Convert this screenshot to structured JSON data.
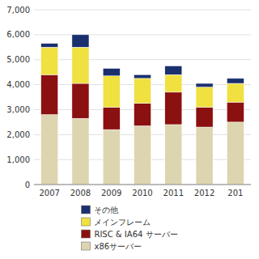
{
  "chart_data": {
    "type": "bar",
    "stacked": true,
    "categories": [
      "2007",
      "2008",
      "2009",
      "2010",
      "2011",
      "2012",
      "201"
    ],
    "series": [
      {
        "name": "x86サーバー",
        "color": "#ddd5b0",
        "values": [
          2800,
          2650,
          2200,
          2350,
          2400,
          2300,
          2500
        ]
      },
      {
        "name": "RISC & IA64 サーバー",
        "color": "#8b1010",
        "values": [
          1600,
          1400,
          900,
          900,
          1300,
          800,
          800
        ]
      },
      {
        "name": "メインフレーム",
        "color": "#f0e040",
        "values": [
          1100,
          1450,
          1250,
          1000,
          700,
          800,
          750
        ]
      },
      {
        "name": "その他",
        "color": "#1a2f6e",
        "values": [
          150,
          500,
          300,
          150,
          350,
          150,
          200
        ]
      }
    ],
    "ylim": [
      0,
      7000
    ],
    "yticks": [
      0,
      {
        "value": 1000,
        "label": "1,000"
      },
      {
        "value": 2000,
        "label": "2,000"
      },
      {
        "value": 3000,
        "label": "3,000"
      },
      {
        "value": 4000,
        "label": "4,000"
      },
      {
        "value": 5000,
        "label": "5,000"
      },
      {
        "value": 6000,
        "label": "6,000"
      },
      {
        "value": 7000,
        "label": "7,000"
      }
    ],
    "grid": true,
    "legend": "bottom"
  }
}
